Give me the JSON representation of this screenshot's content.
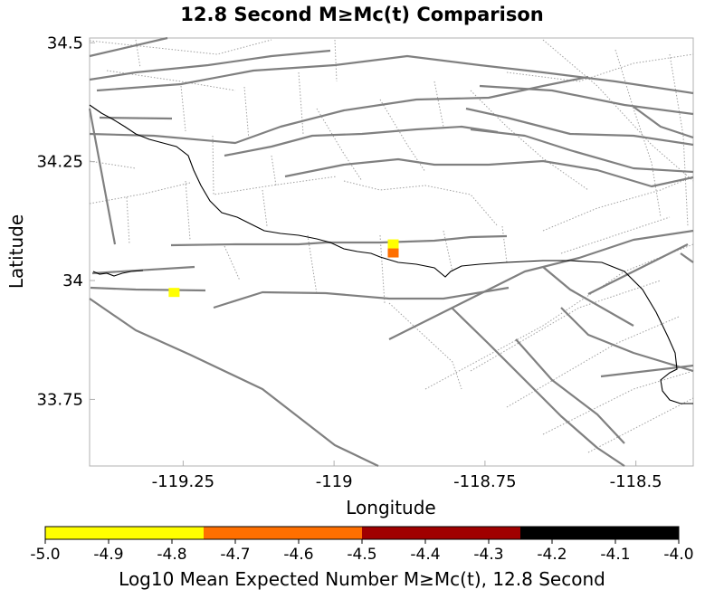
{
  "title": "12.8 Second M≥Mc(t) Comparison",
  "map": {
    "x_label": "Longitude",
    "y_label": "Latitude",
    "lon_range": [
      -119.405,
      -118.405
    ],
    "lat_range": [
      33.61,
      34.51
    ],
    "x_ticks": [
      {
        "value": -119.25,
        "label": "-119.25"
      },
      {
        "value": -119.0,
        "label": "-119"
      },
      {
        "value": -118.75,
        "label": "-118.75"
      },
      {
        "value": -118.5,
        "label": "-118.5"
      }
    ],
    "y_ticks": [
      {
        "value": 34.5,
        "label": "34.5"
      },
      {
        "value": 34.25,
        "label": "34.25"
      },
      {
        "value": 34.0,
        "label": "34"
      },
      {
        "value": 33.75,
        "label": "33.75"
      }
    ],
    "cells": [
      {
        "lon": -119.265,
        "lat": 33.975,
        "color": "#ffff00"
      },
      {
        "lon": -118.902,
        "lat": 34.077,
        "color": "#ffff00"
      },
      {
        "lon": -118.902,
        "lat": 34.058,
        "color": "#ff6f00"
      }
    ],
    "faults_solid_color": "#808080",
    "faults_dotted_color": "#a0a0a0",
    "coastline_color": "#000000"
  },
  "colorbar": {
    "title": "Log10 Mean Expected Number M≥Mc(t), 12.8 Second",
    "min": -5.0,
    "max": -4.0,
    "bins": [
      {
        "from": -5.0,
        "to": -4.75,
        "color": "#ffff00"
      },
      {
        "from": -4.75,
        "to": -4.5,
        "color": "#ff6f00"
      },
      {
        "from": -4.5,
        "to": -4.25,
        "color": "#a00000"
      },
      {
        "from": -4.25,
        "to": -4.0,
        "color": "#000000"
      }
    ],
    "tick_labels": [
      "-5.0",
      "-4.9",
      "-4.8",
      "-4.7",
      "-4.6",
      "-4.5",
      "-4.4",
      "-4.3",
      "-4.2",
      "-4.1",
      "-4.0"
    ]
  }
}
